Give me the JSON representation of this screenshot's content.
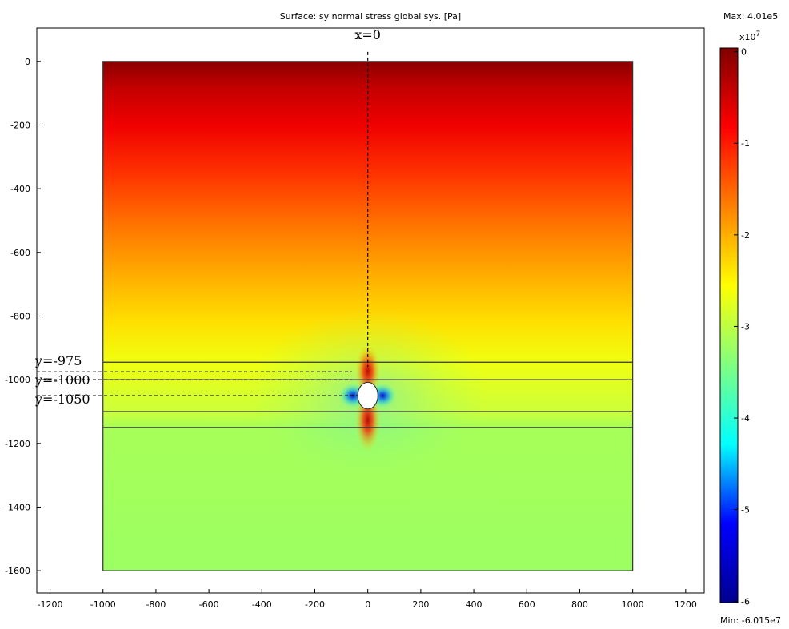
{
  "chart_data": {
    "type": "heatmap",
    "title": "Surface: sy normal stress global sys. [Pa]",
    "xlim": [
      -1250,
      1270
    ],
    "ylim": [
      -1670,
      105
    ],
    "x_ticks": [
      -1200,
      -1000,
      -800,
      -600,
      -400,
      -200,
      0,
      200,
      400,
      600,
      800,
      1000,
      1200
    ],
    "y_ticks": [
      0,
      -200,
      -400,
      -600,
      -800,
      -1000,
      -1200,
      -1400,
      -1600
    ],
    "domain": {
      "x": [
        -1000,
        1000
      ],
      "y": [
        -1600,
        0
      ]
    },
    "hole": {
      "cx": 0,
      "cy": -1050,
      "rx": 38,
      "ry": 42
    },
    "layer_lines_y": [
      -945,
      -1000,
      -1100,
      -1150
    ],
    "colorbar": {
      "max_label": "Max: 4.01e5",
      "min_label": "Min: -6.015e7",
      "exponent_base": "x10",
      "exponent_power": "7",
      "range": [
        -6.015,
        0.0401
      ],
      "ticks": [
        {
          "value": 0,
          "label": "0"
        },
        {
          "value": -1,
          "label": "-1"
        },
        {
          "value": -2,
          "label": "-2"
        },
        {
          "value": -3,
          "label": "-3"
        },
        {
          "value": -4,
          "label": "-4"
        },
        {
          "value": -5,
          "label": "-5"
        },
        {
          "value": -6,
          "label": "-6"
        }
      ],
      "colormap": [
        "#00008f",
        "#0000ff",
        "#00ffff",
        "#80ff80",
        "#ffff00",
        "#ff8000",
        "#ff0000",
        "#800000"
      ]
    },
    "stress_profile": [
      {
        "depth": 0,
        "color": "#8a0000"
      },
      {
        "depth": 80,
        "color": "#c20000"
      },
      {
        "depth": 200,
        "color": "#f00000"
      },
      {
        "depth": 360,
        "color": "#ff3500"
      },
      {
        "depth": 520,
        "color": "#ff7600"
      },
      {
        "depth": 680,
        "color": "#ffb000"
      },
      {
        "depth": 820,
        "color": "#ffe000"
      },
      {
        "depth": 945,
        "color": "#f0ff10"
      },
      {
        "depth": 1100,
        "color": "#ccff3a"
      },
      {
        "depth": 1150,
        "color": "#a7ff57"
      },
      {
        "depth": 1600,
        "color": "#9cff62"
      }
    ],
    "annotations": [
      {
        "label": "x=0",
        "kind": "vline",
        "x": 0,
        "y_from": 30,
        "y_to": -960
      },
      {
        "label": "y=-975",
        "kind": "hline",
        "y": -975,
        "x_from": -1250,
        "x_to": -60
      },
      {
        "label": "y=-1000",
        "kind": "hline",
        "y": -1000,
        "x_from": -1250,
        "x_to": -60
      },
      {
        "label": "y=-1050",
        "kind": "hline",
        "y": -1050,
        "x_from": -1250,
        "x_to": -40
      }
    ]
  }
}
